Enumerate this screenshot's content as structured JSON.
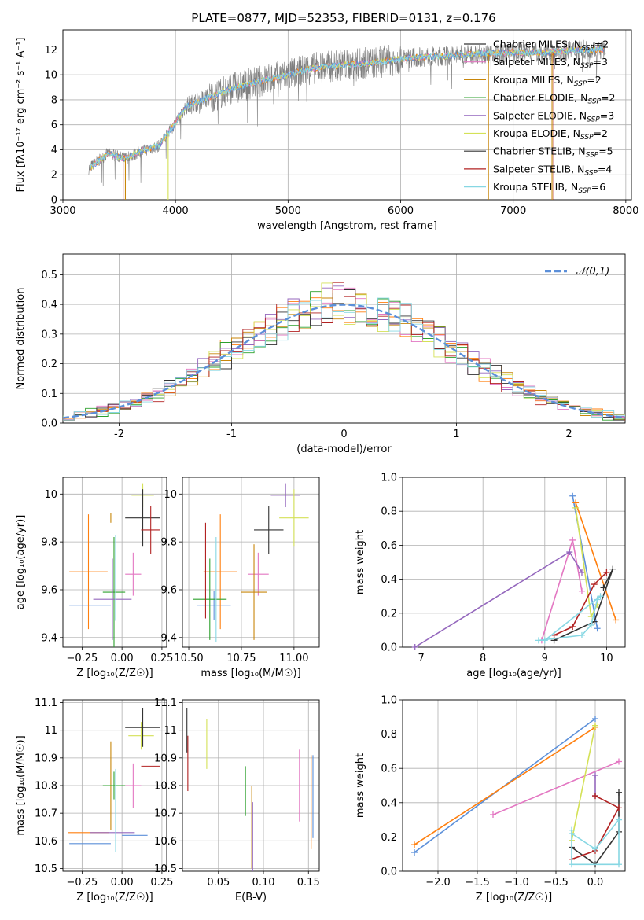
{
  "title": "PLATE=0877, MJD=52353, FIBERID=0131, z=0.176",
  "colors": {
    "grid": "#b0b0b0",
    "spectrum": "#808080",
    "series": [
      "#ff7f0e",
      "#e377c2",
      "#c8860a",
      "#2ca02c",
      "#9467bd",
      "#d4e157",
      "#333333",
      "#b22222",
      "#87d7e3"
    ],
    "blue": "#5b8fd9",
    "normal_curve": "#5b8fd9"
  },
  "chart_data": [
    {
      "id": "spectrum",
      "type": "line",
      "xlabel": "wavelength [Angstrom, rest frame]",
      "ylabel": "Flux [fλ10⁻¹⁷ erg cm⁻² s⁻¹ A⁻¹]",
      "xlim": [
        3000,
        8050
      ],
      "ylim": [
        0,
        13.6
      ],
      "xticks": [
        3000,
        4000,
        5000,
        6000,
        7000,
        8000
      ],
      "yticks": [
        0,
        2,
        4,
        6,
        8,
        10,
        12
      ],
      "grid": true,
      "legend_position": "top-right",
      "legend": [
        "Chabrier MILES, NSSP=2",
        "Salpeter MILES, NSSP=3",
        "Kroupa MILES, NSSP=2",
        "Chabrier ELODIE, NSSP=2",
        "Salpeter ELODIE, NSSP=3",
        "Kroupa ELODIE, NSSP=2",
        "Chabrier STELIB, NSSP=5",
        "Salpeter STELIB, NSSP=4",
        "Kroupa STELIB, NSSP=6"
      ],
      "spectrum_trend": {
        "x": [
          3230,
          3400,
          3550,
          3700,
          3850,
          3950,
          4100,
          4300,
          4500,
          4800,
          5000,
          5200,
          5500,
          5800,
          6100,
          6400,
          6700,
          7000,
          7300,
          7600,
          7800
        ],
        "y": [
          2.5,
          3.7,
          3.3,
          3.9,
          4.3,
          5.5,
          7.5,
          8.2,
          8.9,
          9.6,
          10.0,
          10.5,
          10.8,
          11.0,
          11.4,
          11.5,
          11.7,
          11.8,
          11.8,
          12.0,
          12.0
        ]
      }
    },
    {
      "id": "residuals",
      "type": "line",
      "xlabel": "(data-model)/error",
      "ylabel": "Normed distribution",
      "xlim": [
        -2.5,
        2.5
      ],
      "ylim": [
        0,
        0.57
      ],
      "xticks": [
        -2,
        -1,
        0,
        1,
        2
      ],
      "yticks": [
        0.0,
        0.1,
        0.2,
        0.3,
        0.4,
        0.5
      ],
      "grid": true,
      "legend": [
        "𝒩(0,1)"
      ],
      "legend_position": "top-right"
    },
    {
      "id": "age_vs_Z",
      "type": "scatter",
      "xlabel": "Z [log₁₀(Z/Z☉)]",
      "ylabel": "age [log₁₀(age/yr)]",
      "xlim": [
        -0.37,
        0.28
      ],
      "ylim": [
        9.36,
        10.07
      ],
      "xticks": [
        -0.25,
        0.0,
        0.25
      ],
      "xticklabels": [
        "−0.25",
        "0.00",
        "0.25"
      ],
      "yticks": [
        9.4,
        9.6,
        9.8,
        10.0
      ],
      "grid": true
    },
    {
      "id": "age_vs_mass",
      "type": "scatter",
      "xlabel": "mass [log₁₀(M/M☉)]",
      "xlim": [
        10.47,
        11.12
      ],
      "ylim": [
        9.36,
        10.07
      ],
      "xticks": [
        10.5,
        10.75,
        11.0
      ],
      "xticklabels": [
        "10.50",
        "10.75",
        "11.00"
      ],
      "yticks": [
        9.4,
        9.6,
        9.8,
        10.0
      ],
      "grid": true
    },
    {
      "id": "weight_vs_age",
      "type": "line",
      "xlabel": "age [log₁₀(age/yr)]",
      "ylabel": "mass weight",
      "xlim": [
        6.7,
        10.3
      ],
      "ylim": [
        0,
        1.0
      ],
      "xticks": [
        7,
        8,
        9,
        10
      ],
      "yticks": [
        0.0,
        0.2,
        0.4,
        0.6,
        0.8,
        1.0
      ],
      "grid": true
    },
    {
      "id": "mass_vs_Z",
      "type": "scatter",
      "xlabel": "Z [log₁₀(Z/Z☉)]",
      "ylabel": "mass [log₁₀(M/M☉)]",
      "xlim": [
        -0.37,
        0.28
      ],
      "ylim": [
        10.49,
        11.11
      ],
      "xticks": [
        -0.25,
        0.0,
        0.25
      ],
      "xticklabels": [
        "−0.25",
        "0.00",
        "0.25"
      ],
      "yticks": [
        10.5,
        10.6,
        10.7,
        10.8,
        10.9,
        11.0,
        11.1
      ],
      "grid": true
    },
    {
      "id": "mass_vs_ebv",
      "type": "scatter",
      "xlabel": "E(B-V)",
      "xlim": [
        0.01,
        0.162
      ],
      "ylim": [
        10.49,
        11.11
      ],
      "xticks": [
        0.05,
        0.1,
        0.15
      ],
      "xticklabels": [
        "0.05",
        "0.10",
        "0.15"
      ],
      "yticks": [
        10.5,
        10.6,
        10.7,
        10.8,
        10.9,
        11.0,
        11.1
      ],
      "grid": true
    },
    {
      "id": "weight_vs_Z",
      "type": "line",
      "xlabel": "Z [log₁₀(Z/Z☉)]",
      "ylabel": "mass weight",
      "xlim": [
        -2.45,
        0.38
      ],
      "ylim": [
        0,
        1.0
      ],
      "xticks": [
        -2.0,
        -1.5,
        -1.0,
        -0.5,
        0.0
      ],
      "xticklabels": [
        "−2.0",
        "−1.5",
        "−1.0",
        "−0.5",
        "0.0"
      ],
      "yticks": [
        0.0,
        0.2,
        0.4,
        0.6,
        0.8,
        1.0
      ],
      "grid": true
    }
  ],
  "models": [
    {
      "name": "Chabrier MILES",
      "age": 9.53,
      "age_err": 0.0,
      "Z": -0.24,
      "Z_err": 0.12,
      "mass": 10.59,
      "mass_err": 0.0,
      "ebv": 0.155,
      "ssp_age": [
        9.45,
        9.85
      ],
      "ssp_w": [
        0.89,
        0.11
      ],
      "ssp_Z": [
        -2.3,
        0.0
      ],
      "color_key": "blue"
    },
    {
      "name": "Kroupa MILES",
      "age": 9.67,
      "age_err": 0.23,
      "Z": -0.21,
      "Z_err": 0.13,
      "mass": 10.63,
      "mass_err": 0.0,
      "ebv": 0.15,
      "ssp_age": [
        9.5,
        10.15
      ],
      "ssp_w": [
        0.85,
        0.16
      ],
      "ssp_Z": [
        -2.3,
        0.0
      ],
      "color_key": "s0"
    },
    {
      "name": "Salpeter MILES",
      "age": 9.66,
      "age_err": 0.09,
      "Z": 0.07,
      "Z_err": 0.05,
      "mass": 10.8,
      "mass_err": 0.09,
      "ebv": 0.14,
      "ssp_age": [
        8.95,
        9.45,
        9.6
      ],
      "ssp_w": [
        0.04,
        0.63,
        0.33
      ],
      "ssp_Z": [
        -1.3,
        0.3
      ],
      "color_key": "s1"
    }
  ]
}
